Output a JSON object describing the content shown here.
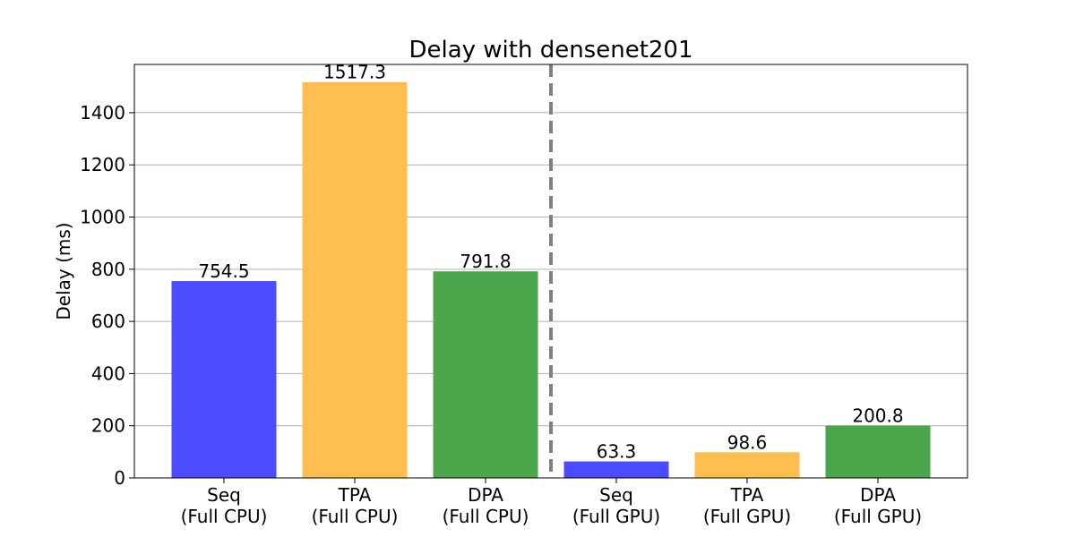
{
  "chart_data": {
    "type": "bar",
    "title": "Delay with densenet201",
    "xlabel": "",
    "ylabel": "Delay (ms)",
    "ylim": [
      0,
      1585
    ],
    "yticks": [
      0,
      200,
      400,
      600,
      800,
      1000,
      1200,
      1400
    ],
    "grid": "y",
    "divider_after_category_index": 2,
    "categories": [
      [
        "Seq",
        "(Full CPU)"
      ],
      [
        "TPA",
        "(Full CPU)"
      ],
      [
        "DPA",
        "(Full CPU)"
      ],
      [
        "Seq",
        "(Full GPU)"
      ],
      [
        "TPA",
        "(Full GPU)"
      ],
      [
        "DPA",
        "(Full GPU)"
      ]
    ],
    "values": [
      754.5,
      1517.3,
      791.8,
      63.3,
      98.6,
      200.8
    ],
    "value_labels": [
      "754.5",
      "1517.3",
      "791.8",
      "63.3",
      "98.6",
      "200.8"
    ],
    "colors": [
      "#4b4bff",
      "#ffbe4f",
      "#4ca64c",
      "#4b4bff",
      "#ffbe4f",
      "#4ca64c"
    ],
    "divider_color": "#808080",
    "grid_color": "#b0b0b0"
  }
}
